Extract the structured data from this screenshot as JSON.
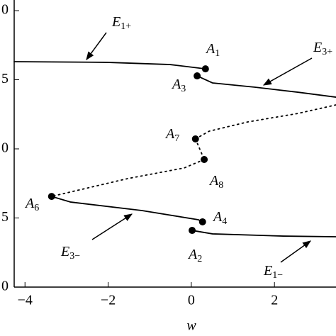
{
  "chart_data": {
    "type": "line",
    "xlabel": "w",
    "xlim": [
      -4.26,
      3.48
    ],
    "ylim": [
      0,
      2.077
    ],
    "xticks": [
      {
        "value": -4,
        "label": "−4"
      },
      {
        "value": -2,
        "label": "−2"
      },
      0,
      2
    ],
    "yticks": [
      0,
      {
        "value": 0.5,
        "label": "5"
      },
      {
        "value": 1,
        "label": "0"
      },
      {
        "value": 1.5,
        "label": "5"
      },
      {
        "value": 2,
        "label": "0"
      }
    ],
    "color": "#000000",
    "segments": [
      {
        "dotted": false,
        "x": [
          -4.26,
          -2.04,
          -0.51,
          0.34
        ],
        "y": [
          1.631,
          1.626,
          1.61,
          1.579
        ]
      },
      {
        "dotted": false,
        "x": [
          0.14,
          0.51,
          1.53,
          2.56,
          3.48
        ],
        "y": [
          1.528,
          1.477,
          1.446,
          1.41,
          1.374
        ]
      },
      {
        "dotted": true,
        "x": [
          3.48,
          2.56,
          1.36,
          0.43,
          0.1
        ],
        "y": [
          1.318,
          1.256,
          1.195,
          1.128,
          1.072
        ]
      },
      {
        "dotted": true,
        "x": [
          0.1,
          0.31
        ],
        "y": [
          1.072,
          0.923
        ]
      },
      {
        "dotted": true,
        "x": [
          0.31,
          -0.17,
          -1.53,
          -3.36
        ],
        "y": [
          0.923,
          0.862,
          0.785,
          0.656
        ]
      },
      {
        "dotted": false,
        "x": [
          -3.36,
          -2.9,
          -1.19,
          0.17,
          0.27
        ],
        "y": [
          0.656,
          0.615,
          0.554,
          0.487,
          0.472
        ]
      },
      {
        "dotted": false,
        "x": [
          0.02,
          0.51,
          2.21,
          3.48
        ],
        "y": [
          0.41,
          0.385,
          0.369,
          0.364
        ]
      }
    ],
    "points": [
      {
        "label": "A",
        "sub": "1",
        "x": 0.34,
        "y": 1.579
      },
      {
        "label": "A",
        "sub": "3",
        "x": 0.14,
        "y": 1.528
      },
      {
        "label": "A",
        "sub": "7",
        "x": 0.1,
        "y": 1.072
      },
      {
        "label": "A",
        "sub": "8",
        "x": 0.31,
        "y": 0.923
      },
      {
        "label": "A",
        "sub": "6",
        "x": -3.36,
        "y": 0.656
      },
      {
        "label": "A",
        "sub": "4",
        "x": 0.27,
        "y": 0.472
      },
      {
        "label": "A",
        "sub": "2",
        "x": 0.02,
        "y": 0.41
      }
    ],
    "annotations": [
      {
        "text": "E",
        "sub": "1+"
      },
      {
        "text": "E",
        "sub": "3+"
      },
      {
        "text": "E",
        "sub": "3−"
      },
      {
        "text": "E",
        "sub": "1−"
      }
    ]
  }
}
